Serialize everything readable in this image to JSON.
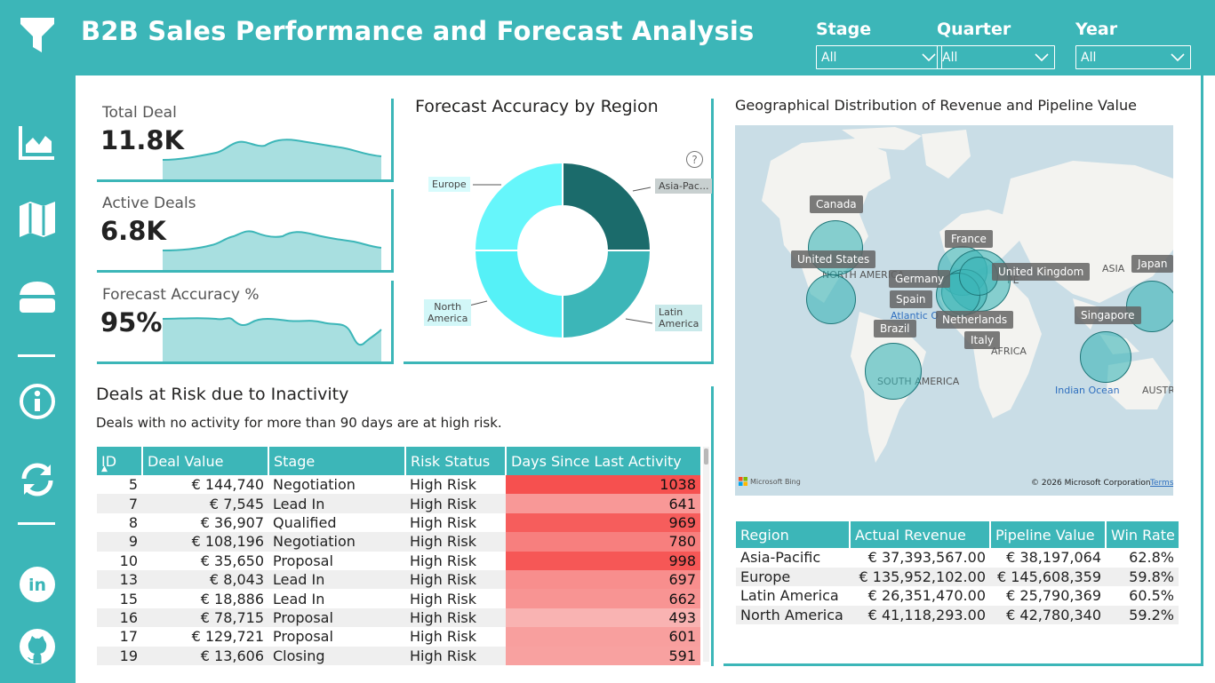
{
  "header": {
    "title": "B2B Sales Performance and Forecast Analysis",
    "slicers": [
      {
        "label": "Stage",
        "value": "All"
      },
      {
        "label": "Quarter",
        "value": "All"
      },
      {
        "label": "Year",
        "value": "All"
      }
    ]
  },
  "sidebar": {
    "icons": [
      "filter-icon",
      "analytics-icon",
      "map-icon",
      "layers-icon",
      "info-icon",
      "refresh-icon",
      "linkedin-icon",
      "github-icon"
    ]
  },
  "kpis": [
    {
      "label": "Total Deal",
      "value": "11.8K"
    },
    {
      "label": "Active Deals",
      "value": "6.8K"
    },
    {
      "label": "Forecast Accuracy %",
      "value": "95%"
    }
  ],
  "donut": {
    "title": "Forecast Accuracy by Region",
    "help_glyph": "?",
    "segments": [
      {
        "label": "Asia-Pac...",
        "share": 0.25,
        "color": "#1b6b6b"
      },
      {
        "label": "Latin America",
        "share": 0.25,
        "color": "#3cb6b8"
      },
      {
        "label": "North America",
        "share": 0.25,
        "color": "#55f1f7"
      },
      {
        "label": "Europe",
        "share": 0.25,
        "color": "#66f6fb"
      }
    ],
    "label_lines": {
      "asia": "Asia-Pac...",
      "latin_1": "Latin",
      "latin_2": "America",
      "north_1": "North",
      "north_2": "America",
      "europe": "Europe"
    }
  },
  "deals": {
    "title": "Deals at Risk due to Inactivity",
    "subtitle": "Deals with no activity for more than 90 days are at high risk.",
    "columns": [
      "ID",
      "Deal Value",
      "Stage",
      "Risk Status",
      "Days Since Last Activity"
    ],
    "sort_glyph": "▲",
    "rows": [
      {
        "id": "5",
        "value": "€ 144,740",
        "stage": "Negotiation",
        "risk": "High Risk",
        "days": 1038
      },
      {
        "id": "7",
        "value": "€ 7,545",
        "stage": "Lead In",
        "risk": "High Risk",
        "days": 641
      },
      {
        "id": "8",
        "value": "€ 36,907",
        "stage": "Qualified",
        "risk": "High Risk",
        "days": 969
      },
      {
        "id": "9",
        "value": "€ 108,196",
        "stage": "Negotiation",
        "risk": "High Risk",
        "days": 780
      },
      {
        "id": "10",
        "value": "€ 35,650",
        "stage": "Proposal",
        "risk": "High Risk",
        "days": 998
      },
      {
        "id": "13",
        "value": "€ 8,043",
        "stage": "Lead In",
        "risk": "High Risk",
        "days": 697
      },
      {
        "id": "15",
        "value": "€ 18,886",
        "stage": "Lead In",
        "risk": "High Risk",
        "days": 662
      },
      {
        "id": "16",
        "value": "€ 78,715",
        "stage": "Proposal",
        "risk": "High Risk",
        "days": 493
      },
      {
        "id": "17",
        "value": "€ 129,721",
        "stage": "Proposal",
        "risk": "High Risk",
        "days": 601
      },
      {
        "id": "19",
        "value": "€ 13,606",
        "stage": "Closing",
        "risk": "High Risk",
        "days": 591
      }
    ]
  },
  "map": {
    "title": "Geographical Distribution of Revenue and Pipeline Value",
    "labels": {
      "canada": "Canada",
      "united_states": "United States",
      "france": "France",
      "germany": "Germany",
      "united_kingdom": "United Kingdom",
      "spain": "Spain",
      "netherlands": "Netherlands",
      "italy": "Italy",
      "brazil": "Brazil",
      "japan": "Japan",
      "singapore": "Singapore"
    },
    "geo": {
      "north_america": "NORTH AMERICA",
      "asia": "ASIA",
      "africa": "AFRICA",
      "south_america": "SOUTH AMERICA",
      "australia": "AUSTRALIA",
      "indian_ocean": "Indian Ocean",
      "atlantic": "Atlantic O",
      "europe_fragment": "PE"
    },
    "bing": "Microsoft Bing",
    "copyright": "© 2026 Microsoft Corporation",
    "terms": "Terms"
  },
  "regions": {
    "columns": [
      "Region",
      "Actual Revenue",
      "Pipeline Value",
      "Win Rate"
    ],
    "rows": [
      {
        "region": "Asia-Pacific",
        "revenue": "€ 37,393,567.00",
        "pipeline": "€ 38,197,064",
        "win": "62.8%"
      },
      {
        "region": "Europe",
        "revenue": "€ 135,952,102.00",
        "pipeline": "€ 145,608,359",
        "win": "59.8%"
      },
      {
        "region": "Latin America",
        "revenue": "€ 26,351,470.00",
        "pipeline": "€ 25,790,369",
        "win": "60.5%"
      },
      {
        "region": "North America",
        "revenue": "€ 41,118,293.00",
        "pipeline": "€ 42,780,340",
        "win": "59.2%"
      }
    ]
  },
  "colors": {
    "accent": "#3cb6b8",
    "risk_high": "#f6504f",
    "risk_low": "#f9b3b2",
    "spark_fill": "#a8dfe0",
    "spark_line": "#3cb6b8"
  }
}
